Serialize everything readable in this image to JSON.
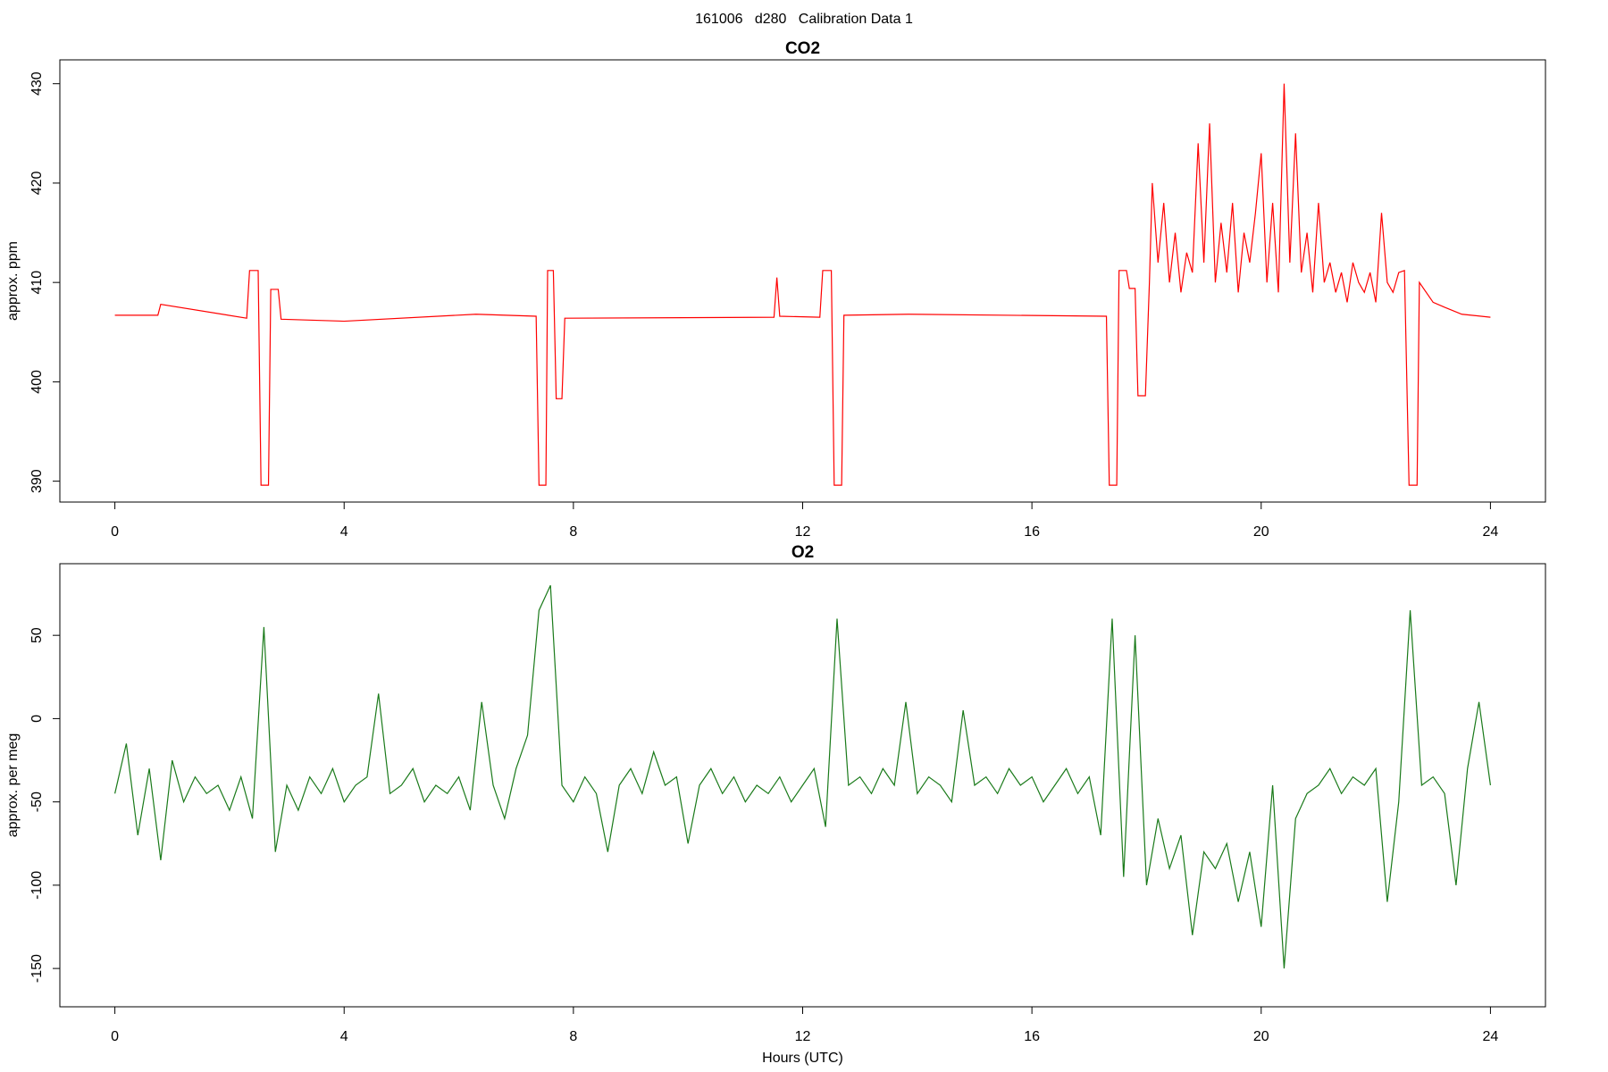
{
  "title": "161006   d280   Calibration Data 1",
  "chart_data": [
    {
      "type": "line",
      "title": "CO2",
      "ylabel": "approx. ppm",
      "color": "#ff0000",
      "xlim": [
        -0.96,
        24.96
      ],
      "xticks": [
        0,
        4,
        8,
        12,
        16,
        20,
        24
      ],
      "ylim": [
        387.9,
        432.4
      ],
      "yticks": [
        390,
        400,
        410,
        420,
        430
      ],
      "x": [
        0,
        0.75,
        0.8,
        2.3,
        2.35,
        2.5,
        2.55,
        2.68,
        2.72,
        2.85,
        2.9,
        4,
        6.3,
        7.35,
        7.4,
        7.52,
        7.55,
        7.65,
        7.7,
        7.8,
        7.85,
        11.5,
        11.55,
        11.6,
        12.3,
        12.35,
        12.5,
        12.55,
        12.68,
        12.72,
        13.85,
        17.3,
        17.35,
        17.48,
        17.52,
        17.65,
        17.7,
        17.8,
        17.85,
        17.98,
        18.05,
        18.1,
        18.2,
        18.3,
        18.4,
        18.5,
        18.6,
        18.7,
        18.8,
        18.9,
        19.0,
        19.1,
        19.2,
        19.3,
        19.4,
        19.5,
        19.6,
        19.7,
        19.8,
        19.9,
        20.0,
        20.1,
        20.2,
        20.3,
        20.4,
        20.5,
        20.6,
        20.7,
        20.8,
        20.9,
        21.0,
        21.1,
        21.2,
        21.3,
        21.4,
        21.5,
        21.6,
        21.7,
        21.8,
        21.9,
        22.0,
        22.1,
        22.2,
        22.3,
        22.4,
        22.5,
        22.58,
        22.72,
        22.76,
        23.0,
        23.2,
        23.5,
        24
      ],
      "values": [
        406.7,
        406.7,
        407.8,
        406.4,
        411.2,
        411.2,
        389.6,
        389.6,
        409.3,
        409.3,
        406.3,
        406.1,
        406.8,
        406.6,
        389.6,
        389.6,
        411.2,
        411.2,
        398.3,
        398.3,
        406.4,
        406.5,
        410.5,
        406.6,
        406.5,
        411.2,
        411.2,
        389.6,
        389.6,
        406.7,
        406.8,
        406.6,
        389.6,
        389.6,
        411.2,
        411.2,
        409.4,
        409.4,
        398.6,
        398.6,
        410,
        420,
        412,
        418,
        410,
        415,
        409,
        413,
        411,
        424,
        412,
        426,
        410,
        416,
        411,
        418,
        409,
        415,
        412,
        417,
        423,
        410,
        418,
        409,
        430,
        412,
        425,
        411,
        415,
        409,
        418,
        410,
        412,
        409,
        411,
        408,
        412,
        410,
        409,
        411,
        408,
        417,
        410,
        409,
        411,
        411.2,
        389.6,
        389.6,
        410,
        408,
        407.5,
        406.8,
        406.5
      ]
    },
    {
      "type": "line",
      "title": "O2",
      "ylabel": "approx. per meg",
      "xlabel": "Hours (UTC)",
      "color": "#1a7a1a",
      "xlim": [
        -0.96,
        24.96
      ],
      "xticks": [
        0,
        4,
        8,
        12,
        16,
        20,
        24
      ],
      "ylim": [
        -173,
        93
      ],
      "yticks": [
        -150,
        -100,
        -50,
        0,
        50
      ],
      "x": [
        0,
        0.2,
        0.4,
        0.6,
        0.8,
        1,
        1.2,
        1.4,
        1.6,
        1.8,
        2,
        2.2,
        2.4,
        2.6,
        2.8,
        3,
        3.2,
        3.4,
        3.6,
        3.8,
        4,
        4.2,
        4.4,
        4.6,
        4.8,
        5,
        5.2,
        5.4,
        5.6,
        5.8,
        6,
        6.2,
        6.4,
        6.6,
        6.8,
        7,
        7.2,
        7.4,
        7.6,
        7.8,
        8,
        8.2,
        8.4,
        8.6,
        8.8,
        9,
        9.2,
        9.4,
        9.6,
        9.8,
        10,
        10.2,
        10.4,
        10.6,
        10.8,
        11,
        11.2,
        11.4,
        11.6,
        11.8,
        12,
        12.2,
        12.4,
        12.6,
        12.8,
        13,
        13.2,
        13.4,
        13.6,
        13.8,
        14,
        14.2,
        14.4,
        14.6,
        14.8,
        15,
        15.2,
        15.4,
        15.6,
        15.8,
        16,
        16.2,
        16.4,
        16.6,
        16.8,
        17,
        17.2,
        17.4,
        17.6,
        17.8,
        18,
        18.2,
        18.4,
        18.6,
        18.8,
        19,
        19.2,
        19.4,
        19.6,
        19.8,
        20,
        20.2,
        20.4,
        20.6,
        20.8,
        21,
        21.2,
        21.4,
        21.6,
        21.8,
        22,
        22.2,
        22.4,
        22.6,
        22.8,
        23,
        23.2,
        23.4,
        23.6,
        23.8,
        24
      ],
      "values": [
        -45,
        -15,
        -70,
        -30,
        -85,
        -25,
        -50,
        -35,
        -45,
        -40,
        -55,
        -35,
        -60,
        55,
        -80,
        -40,
        -55,
        -35,
        -45,
        -30,
        -50,
        -40,
        -35,
        15,
        -45,
        -40,
        -30,
        -50,
        -40,
        -45,
        -35,
        -55,
        10,
        -40,
        -60,
        -30,
        -10,
        65,
        80,
        -40,
        -50,
        -35,
        -45,
        -80,
        -40,
        -30,
        -45,
        -20,
        -40,
        -35,
        -75,
        -40,
        -30,
        -45,
        -35,
        -50,
        -40,
        -45,
        -35,
        -50,
        -40,
        -30,
        -65,
        60,
        -40,
        -35,
        -45,
        -30,
        -40,
        10,
        -45,
        -35,
        -40,
        -50,
        5,
        -40,
        -35,
        -45,
        -30,
        -40,
        -35,
        -50,
        -40,
        -30,
        -45,
        -35,
        -70,
        60,
        -95,
        50,
        -100,
        -60,
        -90,
        -70,
        -130,
        -80,
        -90,
        -75,
        -110,
        -80,
        -125,
        -40,
        -150,
        -60,
        -45,
        -40,
        -30,
        -45,
        -35,
        -40,
        -30,
        -110,
        -50,
        65,
        -40,
        -35,
        -45,
        -100,
        -30,
        10,
        -40
      ]
    }
  ]
}
